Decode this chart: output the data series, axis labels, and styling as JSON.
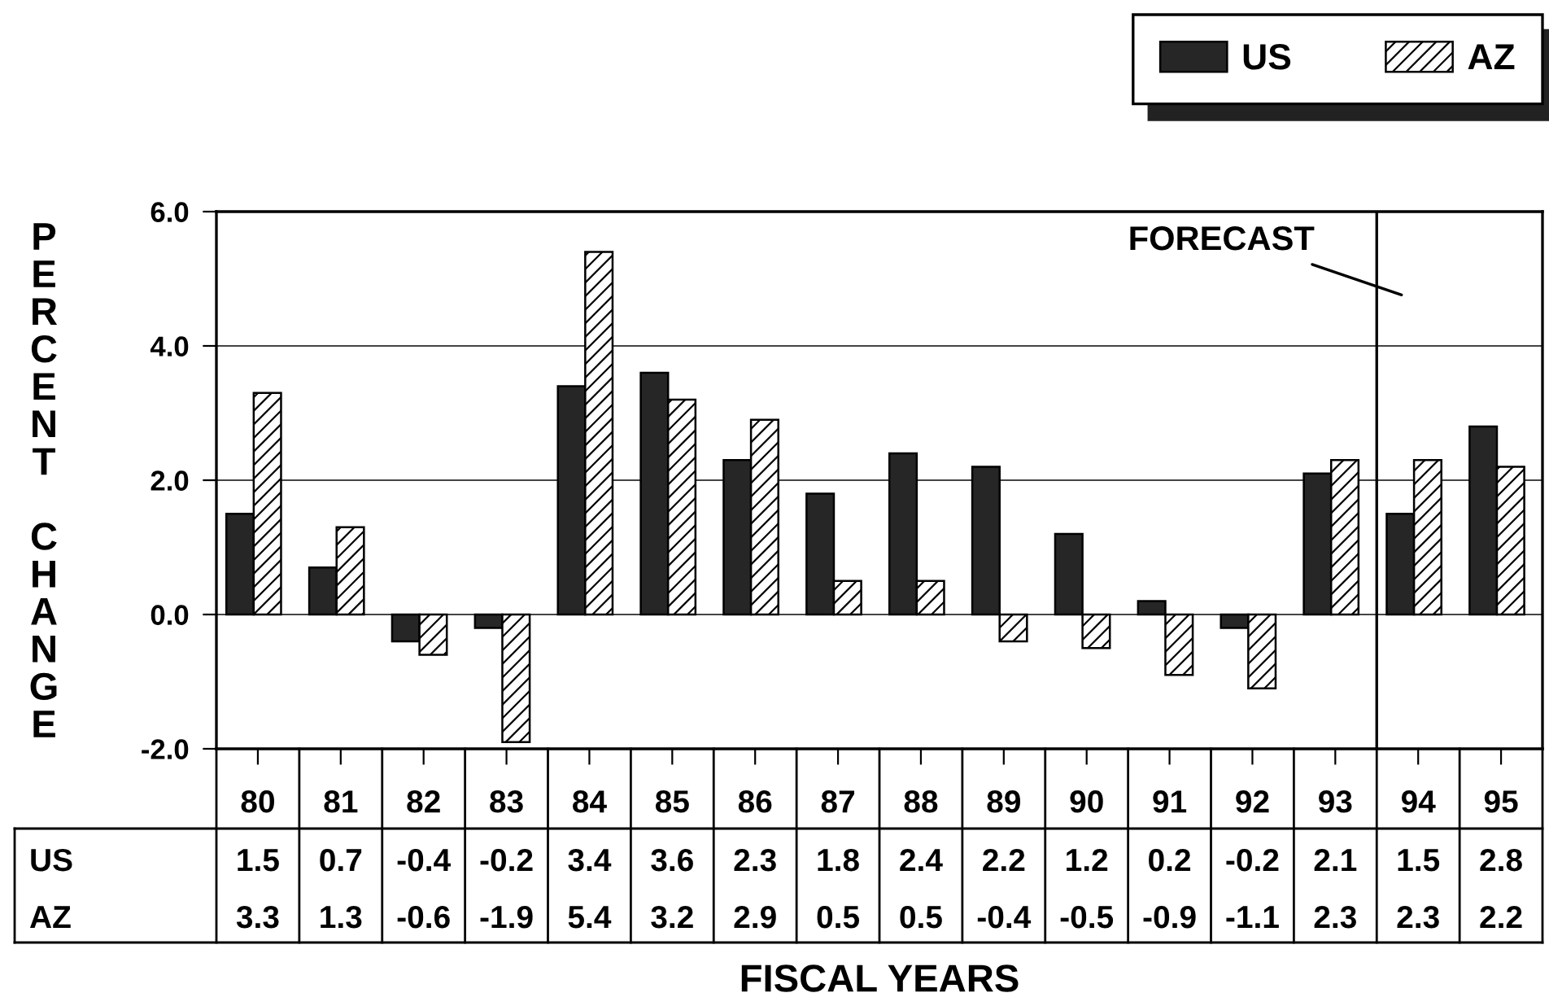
{
  "chart_data": {
    "type": "bar",
    "xlabel": "FISCAL YEARS",
    "ylabel": "PERCENT CHANGE",
    "categories": [
      "80",
      "81",
      "82",
      "83",
      "84",
      "85",
      "86",
      "87",
      "88",
      "89",
      "90",
      "91",
      "92",
      "93",
      "94",
      "95"
    ],
    "series": [
      {
        "name": "US",
        "color": "#262626",
        "values": [
          1.5,
          0.7,
          -0.4,
          -0.2,
          3.4,
          3.6,
          2.3,
          1.8,
          2.4,
          2.2,
          1.2,
          0.2,
          -0.2,
          2.1,
          1.5,
          2.8
        ]
      },
      {
        "name": "AZ",
        "color": "#000000",
        "values": [
          3.3,
          1.3,
          -0.6,
          -1.9,
          5.4,
          3.2,
          2.9,
          0.5,
          0.5,
          -0.4,
          -0.5,
          -0.9,
          -1.1,
          2.3,
          2.3,
          2.2
        ]
      }
    ],
    "ylim": [
      -2,
      6
    ],
    "yticks": [
      {
        "value": -2,
        "label": "-2.0"
      },
      {
        "value": 0,
        "label": "0.0"
      },
      {
        "value": 2,
        "label": "2.0"
      },
      {
        "value": 4,
        "label": "4.0"
      },
      {
        "value": 6,
        "label": "6.0"
      }
    ],
    "grid": "y",
    "legend": "top right",
    "data_labels": true,
    "ref_lines": [
      {
        "axis": "x",
        "value": "94",
        "label": "FORECAST"
      }
    ]
  }
}
